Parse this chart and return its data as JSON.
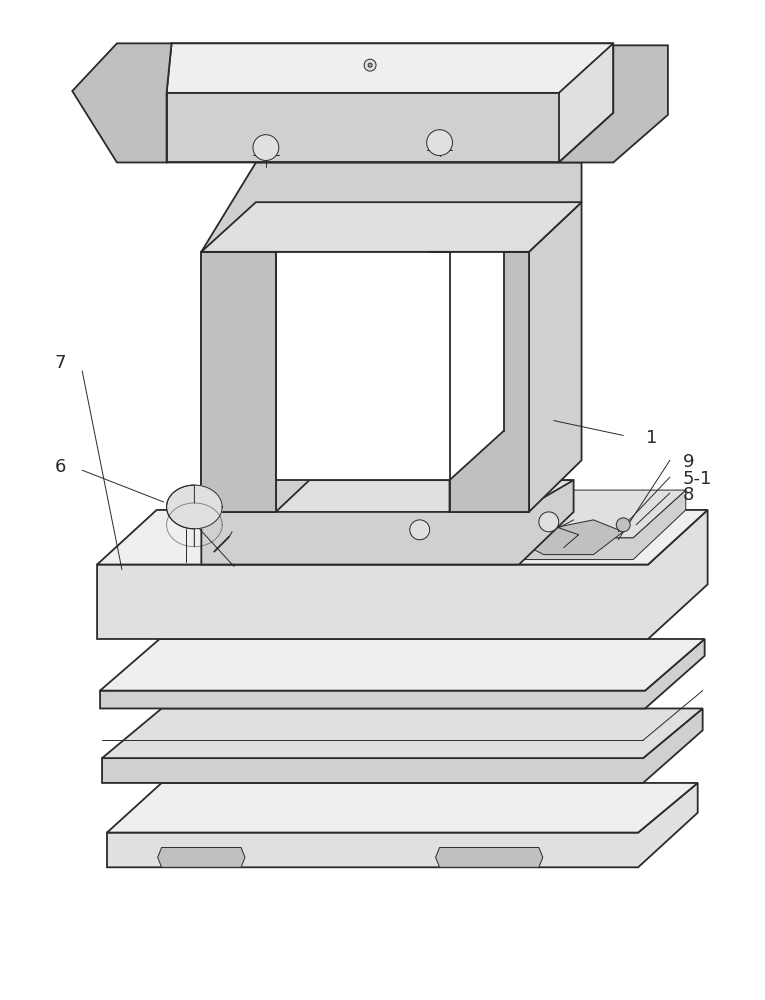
{
  "bg_color": "#ffffff",
  "line_color": "#2a2a2a",
  "lw_main": 1.3,
  "lw_thin": 0.7,
  "face_light": "#efefef",
  "face_mid": "#e0e0e0",
  "face_dark": "#d0d0d0",
  "face_darker": "#c0c0c0",
  "face_side": "#d8d8d8",
  "fig_w": 7.65,
  "fig_h": 10.0,
  "label_fs": 13
}
